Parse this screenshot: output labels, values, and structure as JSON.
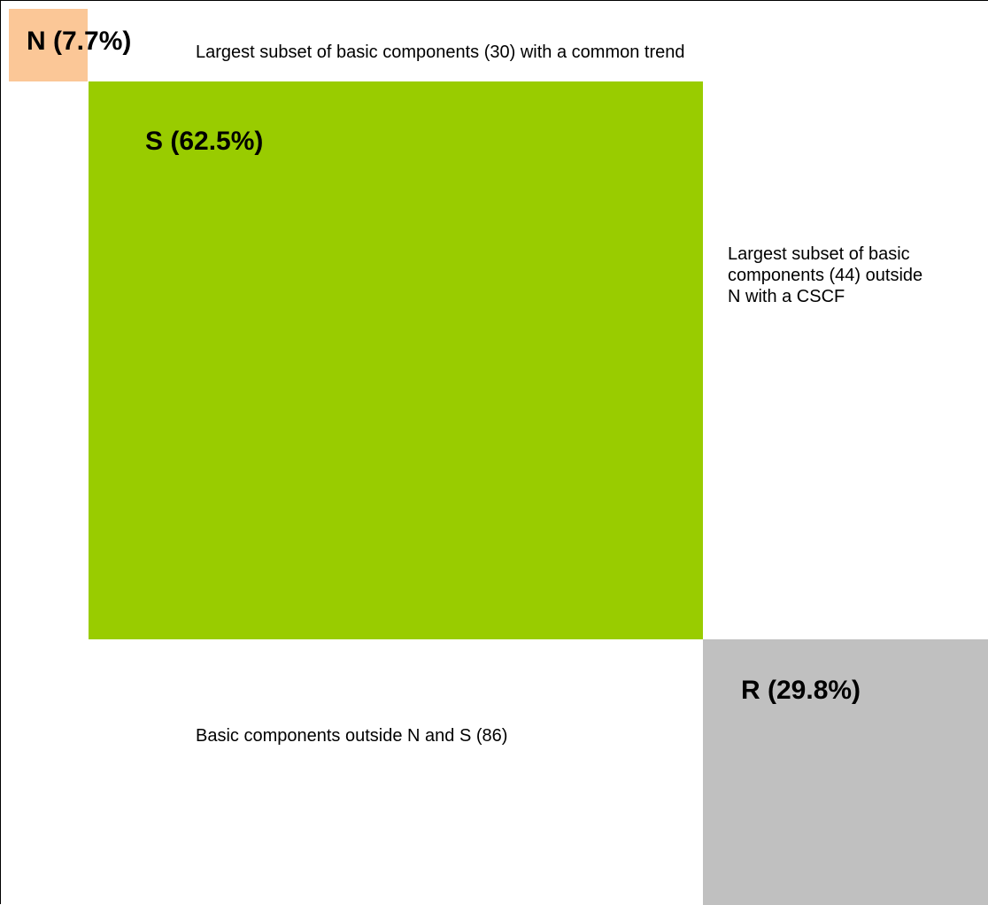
{
  "colors": {
    "n_fill": "#fbc797",
    "s_fill": "#99cc00",
    "r_fill": "#c0c0c0"
  },
  "regions": {
    "n": {
      "label": "N (7.7%)",
      "description": "Largest subset of basic components (30) with a common trend"
    },
    "s": {
      "label": "S (62.5%)",
      "description": "Largest subset of basic components (44) outside N with a CSCF"
    },
    "r": {
      "label": "R (29.8%)",
      "description": "Basic components outside N and S (86)"
    }
  }
}
